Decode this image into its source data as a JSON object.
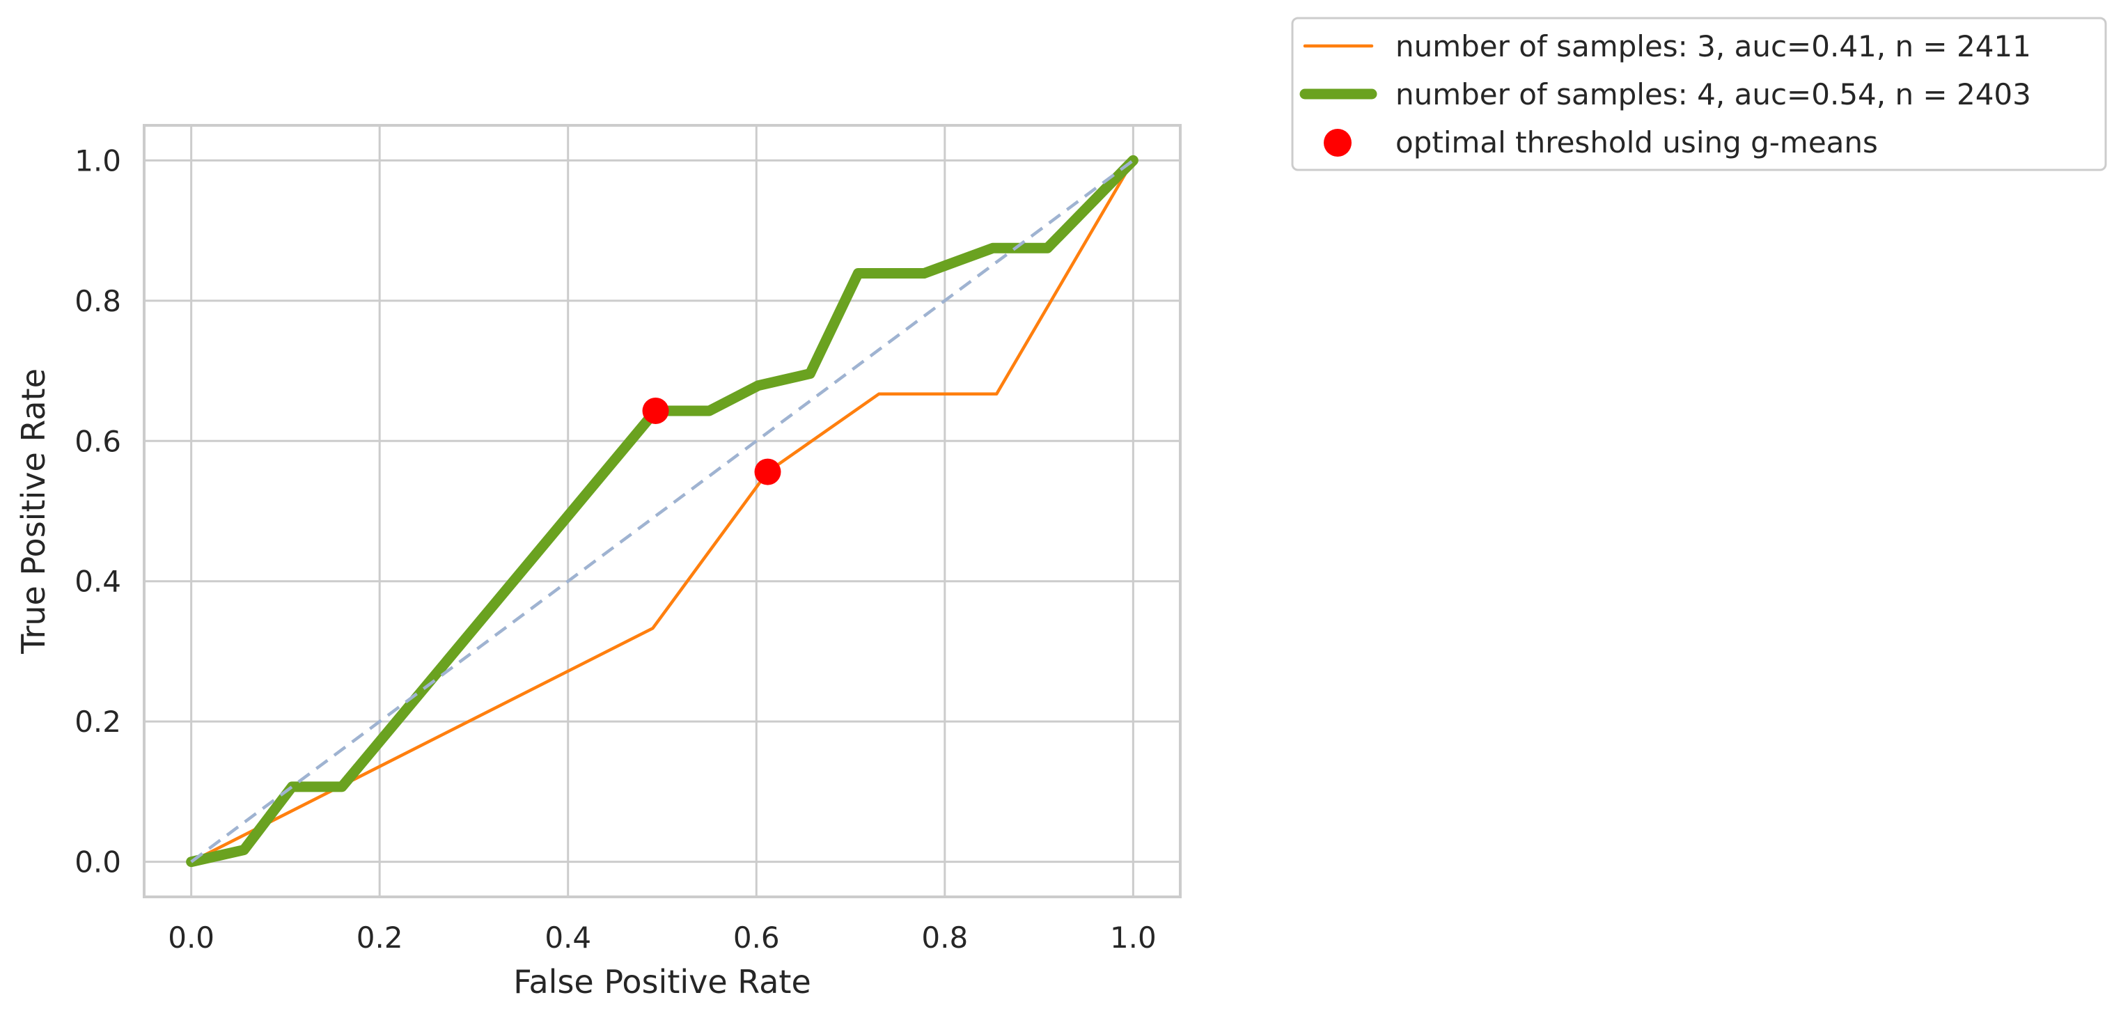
{
  "chart_data": {
    "type": "line",
    "title": "",
    "xlabel": "False Positive Rate",
    "ylabel": "True Positive Rate",
    "xlim": [
      -0.05,
      1.05
    ],
    "ylim": [
      -0.05,
      1.05
    ],
    "xticks": [
      0.0,
      0.2,
      0.4,
      0.6,
      0.8,
      1.0
    ],
    "yticks": [
      0.0,
      0.2,
      0.4,
      0.6,
      0.8,
      1.0
    ],
    "xtick_labels": [
      "0.0",
      "0.2",
      "0.4",
      "0.6",
      "0.8",
      "1.0"
    ],
    "ytick_labels": [
      "0.0",
      "0.2",
      "0.4",
      "0.6",
      "0.8",
      "1.0"
    ],
    "grid": true,
    "legend_position": "outside top-right",
    "series": [
      {
        "name": "number of samples: 3, auc=0.41, n = 2411",
        "color": "#ff7f0e",
        "style": "thin",
        "x": [
          0.0,
          0.49,
          0.612,
          0.73,
          0.855,
          1.0
        ],
        "y": [
          0.0,
          0.333,
          0.556,
          0.667,
          0.667,
          1.0
        ]
      },
      {
        "name": "number of samples: 4, auc=0.54, n = 2403",
        "color": "#6aa220",
        "style": "thick",
        "x": [
          0.0,
          0.056,
          0.107,
          0.16,
          0.493,
          0.55,
          0.602,
          0.657,
          0.708,
          0.778,
          0.851,
          0.909,
          1.0
        ],
        "y": [
          0.0,
          0.017,
          0.107,
          0.107,
          0.643,
          0.643,
          0.679,
          0.696,
          0.839,
          0.839,
          0.875,
          0.875,
          1.0
        ]
      }
    ],
    "reference_line": {
      "x": [
        0.0,
        1.0
      ],
      "y": [
        0.0,
        1.0
      ],
      "color": "#9fb3d1",
      "style": "dashed"
    },
    "optimal_points": {
      "name": "optimal threshold using g-means",
      "color": "#ff0000",
      "points": [
        {
          "x": 0.493,
          "y": 0.643
        },
        {
          "x": 0.612,
          "y": 0.556
        }
      ]
    }
  }
}
